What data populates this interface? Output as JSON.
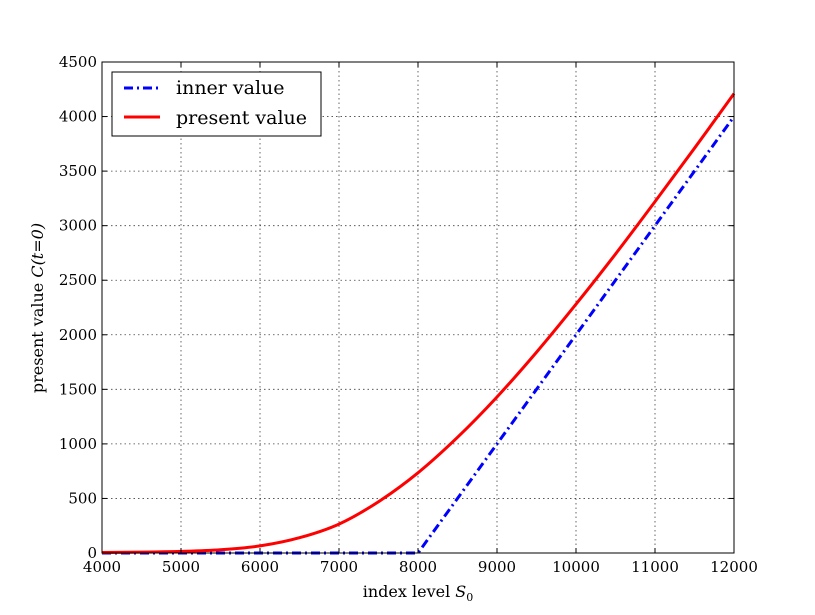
{
  "chart_data": {
    "type": "line",
    "title": "",
    "xlabel": "index level",
    "xlabel_symbol": "S",
    "xlabel_subscript": "0",
    "ylabel": "present value",
    "ylabel_symbol": "C(t=0)",
    "xlim": [
      4000,
      12000
    ],
    "ylim": [
      0,
      4500
    ],
    "x_ticks": [
      4000,
      5000,
      6000,
      7000,
      8000,
      9000,
      10000,
      11000,
      12000
    ],
    "y_ticks": [
      0,
      500,
      1000,
      1500,
      2000,
      2500,
      3000,
      3500,
      4000,
      4500
    ],
    "grid": true,
    "legend_position": "top-left",
    "series": [
      {
        "name": "inner value",
        "color": "#0000ff",
        "style": "dash-dot",
        "x": [
          4000,
          5000,
          6000,
          7000,
          8000,
          9000,
          10000,
          11000,
          12000
        ],
        "y": [
          0,
          0,
          0,
          0,
          0,
          1000,
          2000,
          3000,
          4000
        ]
      },
      {
        "name": "present value",
        "color": "#ff0000",
        "style": "solid",
        "x": [
          4000,
          4500,
          5000,
          5500,
          6000,
          6500,
          7000,
          7500,
          8000,
          8500,
          9000,
          9500,
          10000,
          10500,
          11000,
          11500,
          12000
        ],
        "y": [
          5,
          8,
          15,
          30,
          65,
          140,
          265,
          470,
          735,
          1060,
          1430,
          1840,
          2280,
          2740,
          3220,
          3710,
          4210
        ]
      }
    ]
  }
}
